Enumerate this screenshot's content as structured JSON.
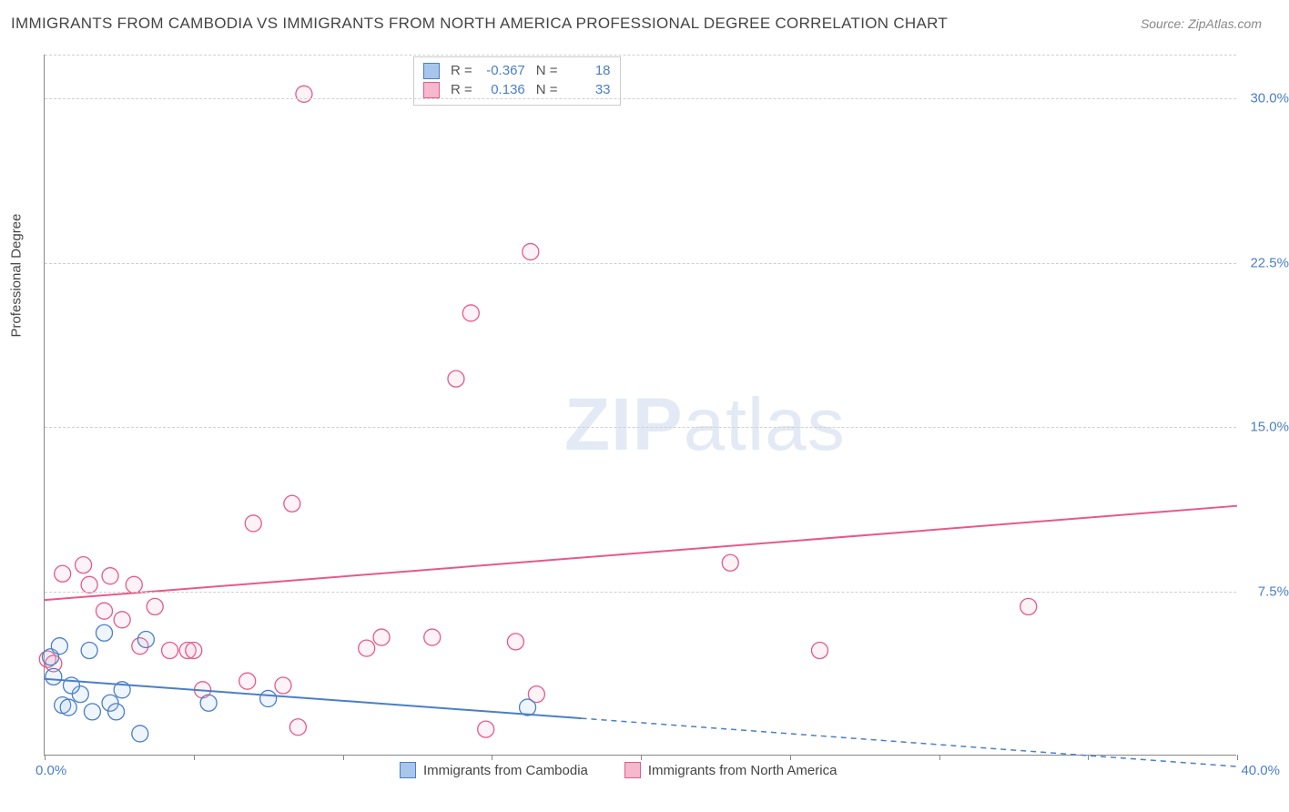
{
  "title": "IMMIGRANTS FROM CAMBODIA VS IMMIGRANTS FROM NORTH AMERICA PROFESSIONAL DEGREE CORRELATION CHART",
  "source": "Source: ZipAtlas.com",
  "watermark_zip": "ZIP",
  "watermark_atlas": "atlas",
  "y_axis_title": "Professional Degree",
  "chart": {
    "type": "scatter",
    "xlim": [
      0,
      40
    ],
    "ylim": [
      0,
      32
    ],
    "x_tick_positions": [
      0,
      5,
      10,
      15,
      20,
      25,
      30,
      35,
      40
    ],
    "y_ticks": [
      {
        "value": 7.5,
        "label": "7.5%"
      },
      {
        "value": 15.0,
        "label": "15.0%"
      },
      {
        "value": 22.5,
        "label": "22.5%"
      },
      {
        "value": 30.0,
        "label": "30.0%"
      }
    ],
    "x_min_label": "0.0%",
    "x_max_label": "40.0%",
    "background_color": "#ffffff",
    "grid_color": "#d0d0d0",
    "axis_color": "#888888",
    "marker_radius": 9,
    "marker_fill_opacity": 0.18,
    "marker_stroke_width": 1.3
  },
  "series": [
    {
      "name": "Immigrants from Cambodia",
      "legend_label": "Immigrants from Cambodia",
      "color_stroke": "#4a7fc8",
      "color_fill": "#a8c5ec",
      "R_label": "R =",
      "R": "-0.367",
      "N_label": "N =",
      "N": "18",
      "trend": {
        "x1": 0,
        "y1": 3.5,
        "x2": 40,
        "y2": -0.5,
        "dash_after_x": 18
      },
      "points": [
        {
          "x": 0.2,
          "y": 4.5
        },
        {
          "x": 0.3,
          "y": 3.6
        },
        {
          "x": 0.5,
          "y": 5.0
        },
        {
          "x": 0.6,
          "y": 2.3
        },
        {
          "x": 0.8,
          "y": 2.2
        },
        {
          "x": 1.2,
          "y": 2.8
        },
        {
          "x": 1.5,
          "y": 4.8
        },
        {
          "x": 1.6,
          "y": 2.0
        },
        {
          "x": 2.0,
          "y": 5.6
        },
        {
          "x": 2.2,
          "y": 2.4
        },
        {
          "x": 2.4,
          "y": 2.0
        },
        {
          "x": 2.6,
          "y": 3.0
        },
        {
          "x": 3.2,
          "y": 1.0
        },
        {
          "x": 3.4,
          "y": 5.3
        },
        {
          "x": 5.5,
          "y": 2.4
        },
        {
          "x": 7.5,
          "y": 2.6
        },
        {
          "x": 16.2,
          "y": 2.2
        },
        {
          "x": 0.9,
          "y": 3.2
        }
      ]
    },
    {
      "name": "Immigrants from North America",
      "legend_label": "Immigrants from North America",
      "color_stroke": "#e65a88",
      "color_fill": "#f6b8cd",
      "R_label": "R =",
      "R": "0.136",
      "N_label": "N =",
      "N": "33",
      "trend": {
        "x1": 0,
        "y1": 7.1,
        "x2": 40,
        "y2": 11.4,
        "dash_after_x": null
      },
      "points": [
        {
          "x": 0.1,
          "y": 4.4
        },
        {
          "x": 0.3,
          "y": 4.2
        },
        {
          "x": 0.6,
          "y": 8.3
        },
        {
          "x": 1.3,
          "y": 8.7
        },
        {
          "x": 1.5,
          "y": 7.8
        },
        {
          "x": 2.0,
          "y": 6.6
        },
        {
          "x": 2.2,
          "y": 8.2
        },
        {
          "x": 2.6,
          "y": 6.2
        },
        {
          "x": 3.0,
          "y": 7.8
        },
        {
          "x": 3.2,
          "y": 5.0
        },
        {
          "x": 3.7,
          "y": 6.8
        },
        {
          "x": 4.2,
          "y": 4.8
        },
        {
          "x": 4.8,
          "y": 4.8
        },
        {
          "x": 5.0,
          "y": 4.8
        },
        {
          "x": 5.3,
          "y": 3.0
        },
        {
          "x": 6.8,
          "y": 3.4
        },
        {
          "x": 7.0,
          "y": 10.6
        },
        {
          "x": 8.0,
          "y": 3.2
        },
        {
          "x": 8.3,
          "y": 11.5
        },
        {
          "x": 8.5,
          "y": 1.3
        },
        {
          "x": 8.7,
          "y": 30.2
        },
        {
          "x": 10.8,
          "y": 4.9
        },
        {
          "x": 11.3,
          "y": 5.4
        },
        {
          "x": 13.0,
          "y": 5.4
        },
        {
          "x": 13.8,
          "y": 17.2
        },
        {
          "x": 14.3,
          "y": 20.2
        },
        {
          "x": 14.8,
          "y": 1.2
        },
        {
          "x": 15.8,
          "y": 5.2
        },
        {
          "x": 16.3,
          "y": 23.0
        },
        {
          "x": 16.5,
          "y": 2.8
        },
        {
          "x": 23.0,
          "y": 8.8
        },
        {
          "x": 26.0,
          "y": 4.8
        },
        {
          "x": 33.0,
          "y": 6.8
        }
      ]
    }
  ]
}
